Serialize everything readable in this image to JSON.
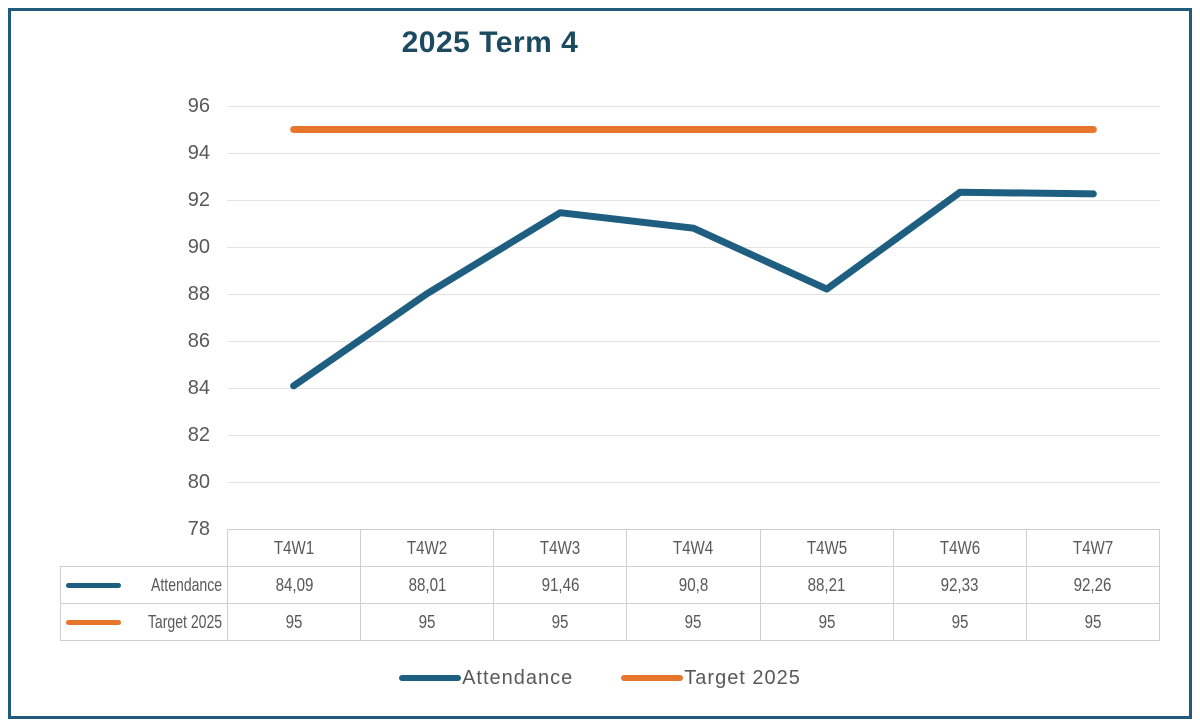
{
  "frame": {
    "border_color": "#1E5B7D"
  },
  "chart_data": {
    "type": "line",
    "title": "2025 Term 4",
    "categories": [
      "T4W1",
      "T4W2",
      "T4W3",
      "T4W4",
      "T4W5",
      "T4W6",
      "T4W7"
    ],
    "series": [
      {
        "name": "Attendance",
        "color": "#1E5E80",
        "values": [
          84.09,
          88.01,
          91.46,
          90.8,
          88.21,
          92.33,
          92.26
        ],
        "display": [
          "84,09",
          "88,01",
          "91,46",
          "90,8",
          "88,21",
          "92,33",
          "92,26"
        ]
      },
      {
        "name": "Target 2025",
        "color": "#E8752C",
        "values": [
          95,
          95,
          95,
          95,
          95,
          95,
          95
        ],
        "display": [
          "95",
          "95",
          "95",
          "95",
          "95",
          "95",
          "95"
        ]
      }
    ],
    "ylim": [
      78,
      96
    ],
    "yticks": [
      96,
      94,
      92,
      90,
      88,
      86,
      84,
      82,
      80,
      78
    ],
    "grid": true,
    "legend_position": "bottom",
    "show_data_table": true,
    "title_color": "#1C4B61",
    "text_color": "#595959",
    "gridline_color": "#E2E2E2",
    "table_border_color": "#CFCFCF"
  }
}
